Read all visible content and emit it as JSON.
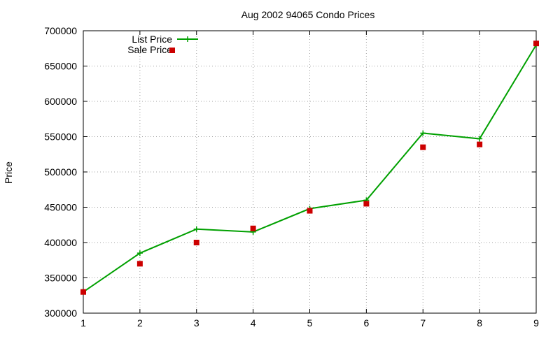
{
  "chart_data": {
    "type": "line",
    "title": "Aug 2002 94065 Condo Prices",
    "xlabel": "",
    "ylabel": "Price",
    "x": [
      1,
      2,
      3,
      4,
      5,
      6,
      7,
      8,
      9
    ],
    "xlim": [
      1,
      9
    ],
    "ylim": [
      300000,
      700000
    ],
    "xticks": [
      1,
      2,
      3,
      4,
      5,
      6,
      7,
      8,
      9
    ],
    "yticks": [
      300000,
      350000,
      400000,
      450000,
      500000,
      550000,
      600000,
      650000,
      700000
    ],
    "grid": true,
    "legend_position": "top-left",
    "series": [
      {
        "name": "List Price",
        "style": "line+plus",
        "color": "#00a000",
        "values": [
          330000,
          385000,
          419000,
          415000,
          448000,
          460000,
          555000,
          547000,
          680000
        ]
      },
      {
        "name": "Sale Price",
        "style": "square-points",
        "color": "#cc0000",
        "values": [
          330000,
          370000,
          400000,
          420000,
          445000,
          455000,
          535000,
          539000,
          682000
        ]
      }
    ]
  }
}
